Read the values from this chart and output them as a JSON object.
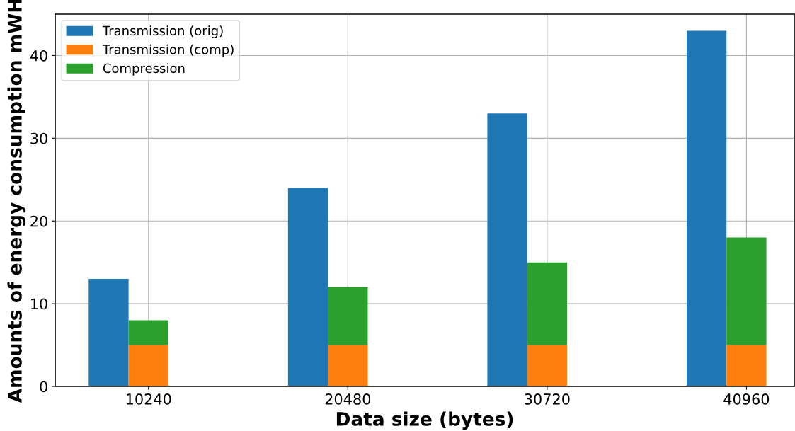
{
  "chart_data": [
    {
      "type": "bar",
      "xlabel": "Data size (bytes)",
      "ylabel": "Amounts of energy consumption mWH",
      "categories": [
        "10240",
        "20480",
        "30720",
        "40960"
      ],
      "series": [
        {
          "name": "Transmission (orig)",
          "color": "#1f77b4",
          "values": [
            13,
            24,
            33,
            43
          ]
        }
      ],
      "ylim": [
        0,
        45
      ],
      "yticks": [
        0,
        10,
        20,
        30,
        40
      ],
      "grid": true,
      "legend": "top left"
    },
    {
      "type": "bar",
      "categories": [
        "10240",
        "20480",
        "30720",
        "40960"
      ],
      "series": [
        {
          "name": "Transmission (comp)",
          "color": "#ff7f0e",
          "values": [
            5,
            5,
            5,
            5
          ]
        },
        {
          "name": "Compression",
          "color": "#2ca02c",
          "values": [
            3,
            7,
            10,
            13
          ]
        }
      ],
      "stacked": true,
      "ylim": [
        0,
        45
      ],
      "tick_labels": false,
      "legend": "top left"
    }
  ]
}
